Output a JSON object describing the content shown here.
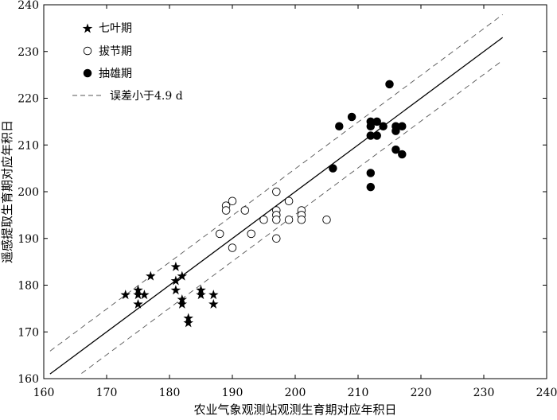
{
  "chart_data": {
    "type": "scatter",
    "xlabel": "农业气象观测站观测生育期对应年积日",
    "ylabel": "遥感提取生育期对应年积日",
    "xlim": [
      160,
      240
    ],
    "ylim": [
      160,
      240
    ],
    "x_ticks": [
      160,
      170,
      180,
      190,
      200,
      210,
      220,
      230,
      240
    ],
    "y_ticks": [
      160,
      170,
      180,
      190,
      200,
      210,
      220,
      230,
      240
    ],
    "grid": false,
    "legend_position": "top-left",
    "series": [
      {
        "name": "七叶期",
        "marker": "star",
        "points": [
          [
            173,
            178
          ],
          [
            175,
            179
          ],
          [
            175,
            178
          ],
          [
            175,
            176
          ],
          [
            176,
            178
          ],
          [
            177,
            182
          ],
          [
            181,
            184
          ],
          [
            181,
            181
          ],
          [
            181,
            179
          ],
          [
            182,
            182
          ],
          [
            182,
            177
          ],
          [
            182,
            176
          ],
          [
            183,
            173
          ],
          [
            183,
            172
          ],
          [
            185,
            179
          ],
          [
            185,
            178
          ],
          [
            187,
            178
          ],
          [
            187,
            176
          ]
        ]
      },
      {
        "name": "拔节期",
        "marker": "open-circle",
        "points": [
          [
            188,
            191
          ],
          [
            189,
            197
          ],
          [
            189,
            196
          ],
          [
            190,
            198
          ],
          [
            190,
            188
          ],
          [
            192,
            196
          ],
          [
            193,
            191
          ],
          [
            195,
            194
          ],
          [
            197,
            200
          ],
          [
            197,
            196
          ],
          [
            197,
            195
          ],
          [
            197,
            194
          ],
          [
            197,
            190
          ],
          [
            199,
            198
          ],
          [
            199,
            194
          ],
          [
            201,
            196
          ],
          [
            201,
            195
          ],
          [
            201,
            194
          ],
          [
            205,
            194
          ]
        ]
      },
      {
        "name": "抽雄期",
        "marker": "filled-circle",
        "points": [
          [
            206,
            205
          ],
          [
            207,
            214
          ],
          [
            209,
            216
          ],
          [
            212,
            215
          ],
          [
            212,
            214
          ],
          [
            212,
            212
          ],
          [
            212,
            204
          ],
          [
            212,
            201
          ],
          [
            213,
            215
          ],
          [
            213,
            212
          ],
          [
            214,
            214
          ],
          [
            215,
            223
          ],
          [
            216,
            214
          ],
          [
            216,
            213
          ],
          [
            216,
            209
          ],
          [
            217,
            214
          ],
          [
            217,
            208
          ]
        ]
      }
    ],
    "reference_lines": [
      {
        "name": "",
        "style": "solid",
        "offset": 0
      },
      {
        "name": "误差小于4.9 d",
        "style": "dashed",
        "offset": 4.9
      },
      {
        "name": "误差小于4.9 d",
        "style": "dashed",
        "offset": -4.9
      }
    ]
  }
}
